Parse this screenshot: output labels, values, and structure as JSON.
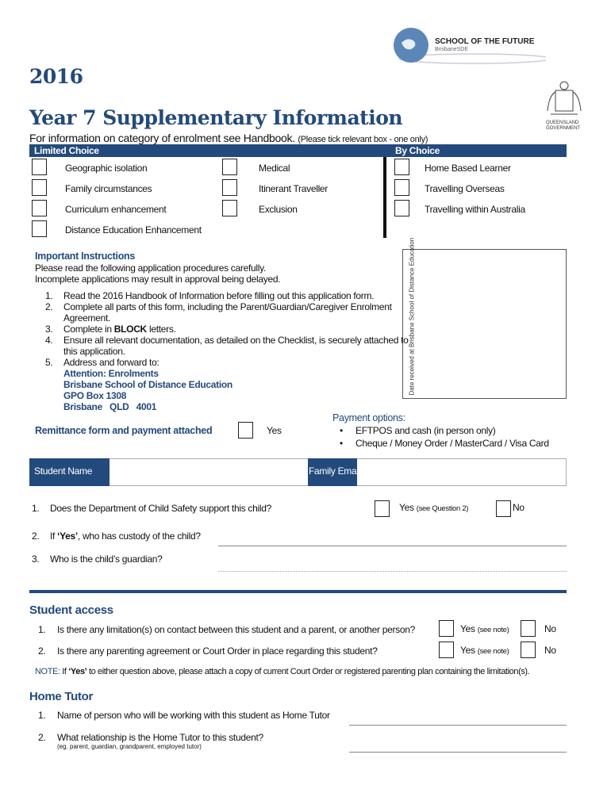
{
  "logo": {
    "title": "SCHOOL OF THE FUTURE",
    "subtitle": "BrisbaneSDE",
    "gov": "QUEENSLAND",
    "gov2": "GOVERNMENT"
  },
  "year": "2016",
  "title": "Year 7 Supplementary Information",
  "subtitle": "For information on category of enrolment see Handbook.",
  "subtitle_note": "(Please tick relevant box - one only)",
  "limited_choice": {
    "label": "Limited Choice",
    "col1": [
      "Geographic isolation",
      "Family circumstances",
      "Curriculum enhancement",
      "Distance Education Enhancement"
    ],
    "col2": [
      "Medical",
      "Itinerant Traveller",
      "Exclusion"
    ]
  },
  "by_choice": {
    "label": "By Choice",
    "items": [
      "Home Based Learner",
      "Travelling Overseas",
      "Travelling within Australia"
    ]
  },
  "instructions": {
    "heading": "Important Instructions",
    "intro1": "Please read the following application procedures carefully.",
    "intro2": "Incomplete applications may result in approval being delayed.",
    "items": [
      {
        "n": "1.",
        "lines": [
          "Read the 2016 Handbook of Information before filling out this application form."
        ]
      },
      {
        "n": "2.",
        "lines": [
          "Complete all parts of this form, including the Parent/Guardian/Caregiver Enrolment",
          "Agreement."
        ]
      },
      {
        "n": "3.",
        "pre": "Complete in ",
        "bold": "BLOCK",
        "post": " letters."
      },
      {
        "n": "4.",
        "lines": [
          "Ensure all relevant documentation, as detailed on the Checklist, is securely attached to",
          "this application."
        ]
      },
      {
        "n": "5.",
        "lines": [
          "Address and forward to:"
        ]
      }
    ],
    "address": [
      "Attention: Enrolments",
      "Brisbane School of Distance Education",
      "GPO Box 1308",
      "Brisbane   QLD   4001"
    ]
  },
  "date_box": "Date received at Brisbane School of Distance Education",
  "remittance": {
    "label": "Remittance form and payment attached",
    "yes": "Yes"
  },
  "payment": {
    "heading": "Payment options:",
    "options": [
      "EFTPOS and cash (in person only)",
      "Cheque / Money Order / MasterCard / Visa Card"
    ]
  },
  "student_row": {
    "name_label": "Student Name",
    "email_label": "Family Email"
  },
  "child_safety": [
    {
      "n": "1.",
      "q": "Does the Department of Child Safety support this child?",
      "yes": "Yes",
      "yes_note": "(see Question 2)",
      "no": "No"
    },
    {
      "n": "2.",
      "pre": "If ",
      "bold": "‘Yes’",
      "post": ", who has custody of the child?"
    },
    {
      "n": "3.",
      "q": "Who is the child’s guardian?"
    }
  ],
  "student_access": {
    "heading": "Student access",
    "questions": [
      {
        "n": "1.",
        "q": "Is there any limitation(s) on contact between this student and a parent, or another person?"
      },
      {
        "n": "2.",
        "q": "Is there any parenting agreement or Court Order in place regarding this student?"
      }
    ],
    "yes": "Yes",
    "yes_note": "(see note)",
    "no": "No",
    "note_label": "NOTE:",
    "note_pre": " If ",
    "note_bold": "‘Yes’",
    "note_post": " to either question above, please attach a copy of current Court Order or registered parenting plan containing the limitation(s)."
  },
  "home_tutor": {
    "heading": "Home Tutor",
    "questions": [
      {
        "n": "1.",
        "q": "Name of person who will be working with this student as Home Tutor"
      },
      {
        "n": "2.",
        "q": "What relationship is the Home Tutor to this student?",
        "sub": "(eg. parent, guardian, grandparent, employed tutor)"
      }
    ]
  },
  "colors": {
    "brand": "#234a7d"
  }
}
